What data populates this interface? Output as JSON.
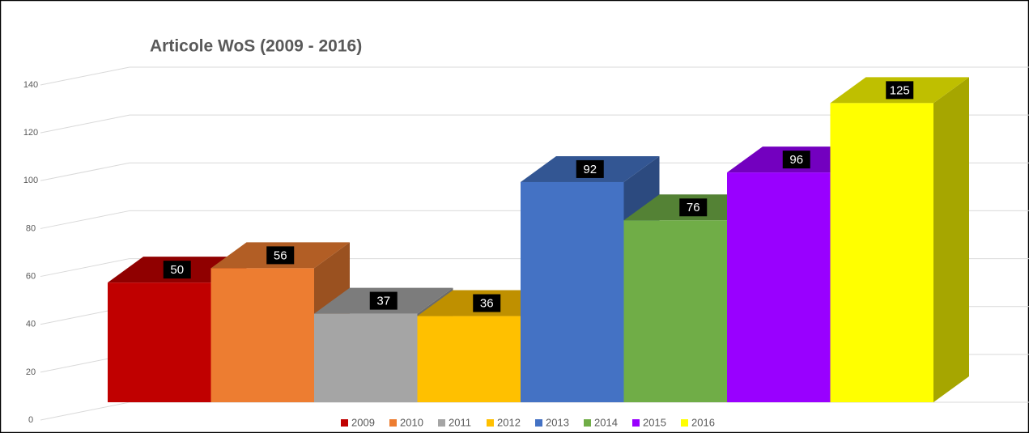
{
  "chart_data": {
    "type": "bar3d",
    "title": "Articole WoS (2009 - 2016)",
    "categories": [
      "2009",
      "2010",
      "2011",
      "2012",
      "2013",
      "2014",
      "2015",
      "2016"
    ],
    "values": [
      50,
      56,
      37,
      36,
      92,
      76,
      96,
      125
    ],
    "colors": [
      "#c00000",
      "#ed7d31",
      "#a5a5a5",
      "#ffc000",
      "#4472c4",
      "#70ad47",
      "#9900ff",
      "#ffff00"
    ],
    "ylim": [
      0,
      140
    ],
    "yticks": [
      0,
      20,
      40,
      60,
      80,
      100,
      120,
      140
    ],
    "grid": true,
    "legend": "bottom"
  }
}
